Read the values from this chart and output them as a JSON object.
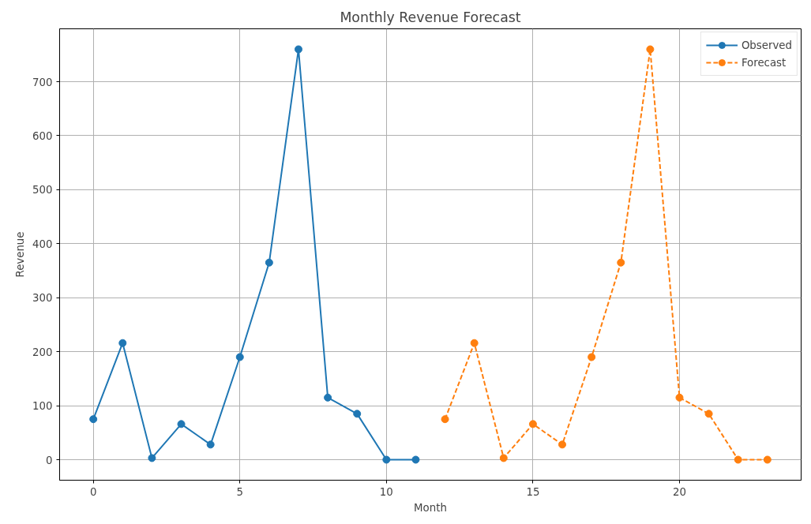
{
  "chart_data": {
    "type": "line",
    "title": "Monthly Revenue Forecast",
    "xlabel": "Month",
    "ylabel": "Revenue",
    "xlim": [
      -1.15,
      24.15
    ],
    "xticks": [
      0,
      5,
      10,
      15,
      20
    ],
    "ylim": [
      -38,
      798
    ],
    "yticks": [
      0,
      100,
      200,
      300,
      400,
      500,
      600,
      700
    ],
    "grid": true,
    "legend": "top right",
    "marker": "circle",
    "series": [
      {
        "name": "Observed",
        "color": "#1f77b4",
        "line_style": "solid",
        "x": [
          0,
          1,
          2,
          3,
          4,
          5,
          6,
          7,
          8,
          9,
          10,
          11
        ],
        "values": [
          75,
          216,
          3,
          66,
          28,
          190,
          365,
          760,
          115,
          85,
          0,
          0
        ]
      },
      {
        "name": "Forecast",
        "color": "#ff7f0e",
        "line_style": "dashed",
        "x": [
          12,
          13,
          14,
          15,
          16,
          17,
          18,
          19,
          20,
          21,
          22,
          23
        ],
        "values": [
          75,
          216,
          3,
          66,
          28,
          190,
          365,
          760,
          115,
          85,
          0,
          0
        ]
      }
    ]
  }
}
